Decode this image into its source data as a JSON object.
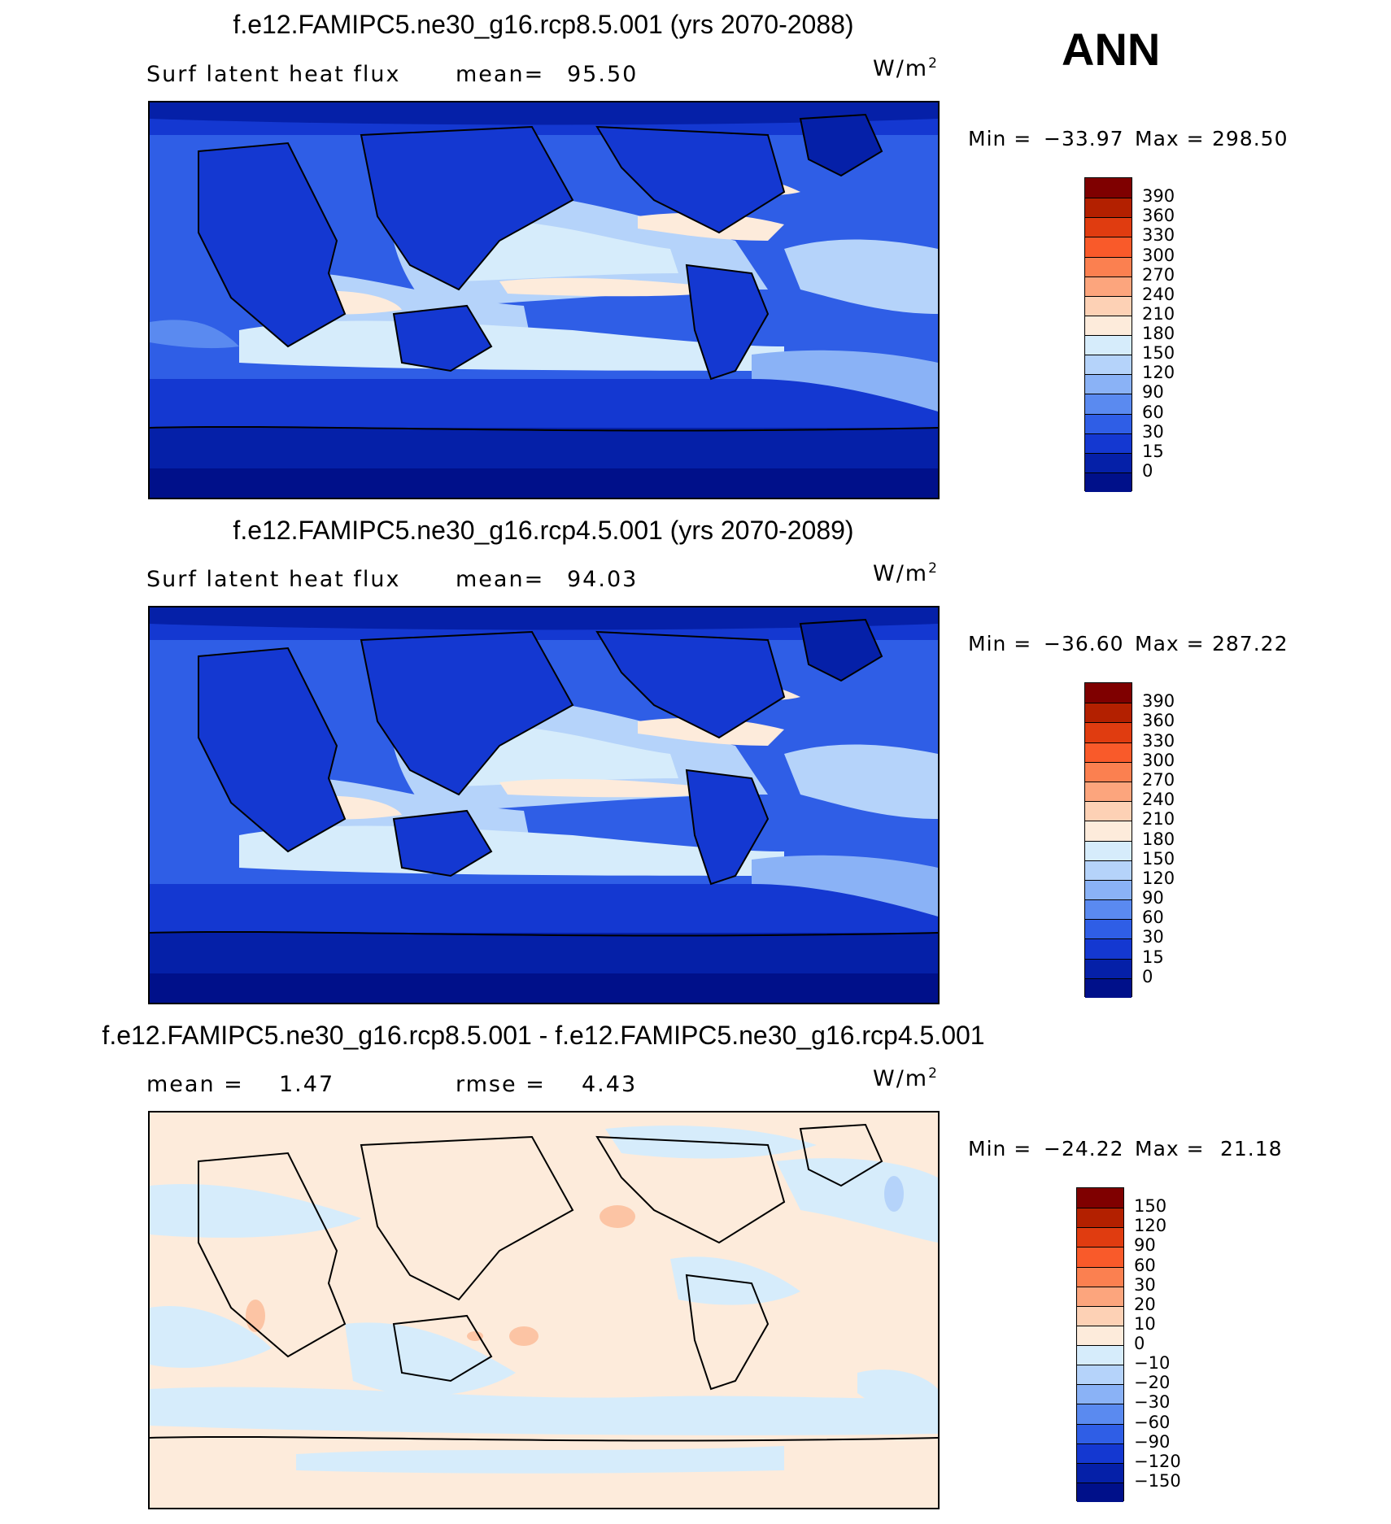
{
  "season": "ANN",
  "panels": [
    {
      "title": "f.e12.FAMIPC5.ne30_g16.rcp8.5.001 (yrs 2070-2088)",
      "left_label": "Surf latent heat flux",
      "stat_label": "mean=",
      "stat_value": "95.50",
      "unit_base": "W/m",
      "unit_exp": "2",
      "min_label": "Min =",
      "min_value": "−33.97",
      "max_label": "Max =",
      "max_value": "298.50",
      "colorbar": {
        "levels": [
          "390",
          "360",
          "330",
          "300",
          "270",
          "240",
          "210",
          "180",
          "150",
          "120",
          "90",
          "60",
          "30",
          "15",
          "0"
        ],
        "colors": [
          "#7f0000",
          "#b32000",
          "#e03c10",
          "#f95a2a",
          "#fb8050",
          "#fca57d",
          "#fdd1b5",
          "#fdebdb",
          "#d6ecfb",
          "#b5d3fa",
          "#8ab2f6",
          "#5a8af0",
          "#2f5ee6",
          "#1438d1",
          "#0520a8",
          "#00108a"
        ]
      }
    },
    {
      "title": "f.e12.FAMIPC5.ne30_g16.rcp4.5.001 (yrs 2070-2089)",
      "left_label": "Surf latent heat flux",
      "stat_label": "mean=",
      "stat_value": "94.03",
      "unit_base": "W/m",
      "unit_exp": "2",
      "min_label": "Min =",
      "min_value": "−36.60",
      "max_label": "Max =",
      "max_value": "287.22",
      "colorbar": {
        "levels": [
          "390",
          "360",
          "330",
          "300",
          "270",
          "240",
          "210",
          "180",
          "150",
          "120",
          "90",
          "60",
          "30",
          "15",
          "0"
        ],
        "colors": [
          "#7f0000",
          "#b32000",
          "#e03c10",
          "#f95a2a",
          "#fb8050",
          "#fca57d",
          "#fdd1b5",
          "#fdebdb",
          "#d6ecfb",
          "#b5d3fa",
          "#8ab2f6",
          "#5a8af0",
          "#2f5ee6",
          "#1438d1",
          "#0520a8",
          "#00108a"
        ]
      }
    },
    {
      "title": "f.e12.FAMIPC5.ne30_g16.rcp8.5.001 - f.e12.FAMIPC5.ne30_g16.rcp4.5.001",
      "left_label": "mean =",
      "left_value": "1.47",
      "stat_label": "rmse =",
      "stat_value": "4.43",
      "unit_base": "W/m",
      "unit_exp": "2",
      "min_label": "Min =",
      "min_value": "−24.22",
      "max_label": "Max =",
      "max_value": "21.18",
      "colorbar": {
        "levels": [
          "150",
          "120",
          "90",
          "60",
          "30",
          "20",
          "10",
          "0",
          "−10",
          "−20",
          "−30",
          "−60",
          "−90",
          "−120",
          "−150"
        ],
        "colors": [
          "#7f0000",
          "#b32000",
          "#e03c10",
          "#f95a2a",
          "#fb8050",
          "#fca57d",
          "#fdd1b5",
          "#fdebdb",
          "#d6ecfb",
          "#b5d3fa",
          "#8ab2f6",
          "#5a8af0",
          "#2f5ee6",
          "#1438d1",
          "#0520a8",
          "#00108a"
        ]
      }
    }
  ],
  "colors": {
    "deep_blue": "#00108a",
    "mid_blue": "#2f5ee6",
    "light_blue": "#b5d3fa",
    "pale_orange": "#fdebdb",
    "orange": "#fca57d",
    "coast": "#000000"
  }
}
